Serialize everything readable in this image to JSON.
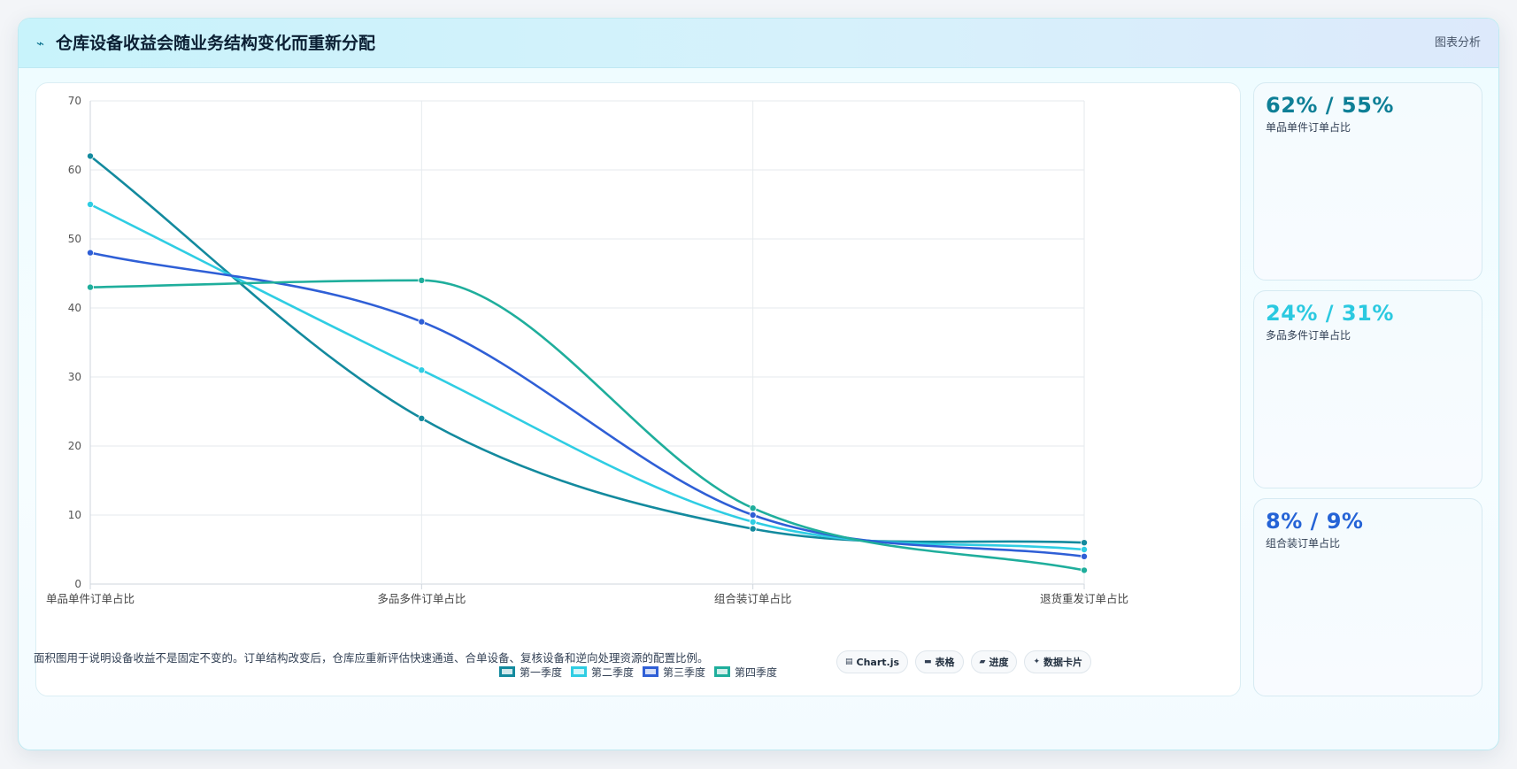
{
  "header": {
    "title": "仓库设备收益会随业务结构变化而重新分配",
    "tag": "图表分析",
    "icon": "bolt-icon"
  },
  "chart_data": {
    "type": "line",
    "categories": [
      "单品单件订单占比",
      "多品多件订单占比",
      "组合装订单占比",
      "退货重发订单占比"
    ],
    "series": [
      {
        "name": "第一季度",
        "values": [
          62,
          24,
          8,
          6
        ],
        "color": "#138a9e"
      },
      {
        "name": "第二季度",
        "values": [
          55,
          31,
          9,
          5
        ],
        "color": "#2fcde3"
      },
      {
        "name": "第三季度",
        "values": [
          48,
          38,
          10,
          4
        ],
        "color": "#2f5fd6"
      },
      {
        "name": "第四季度",
        "values": [
          43,
          44,
          11,
          2
        ],
        "color": "#1fae9c"
      }
    ],
    "ylim": [
      0,
      70
    ],
    "yticks": [
      0,
      10,
      20,
      30,
      40,
      50,
      60,
      70
    ],
    "grid": true,
    "legend": "bottom",
    "curve": "smooth"
  },
  "stats": [
    {
      "value": "62% / 55%",
      "label": "单品单件订单占比",
      "color": "#0e7f96"
    },
    {
      "value": "24% / 31%",
      "label": "多品多件订单占比",
      "color": "#2bc9e0"
    },
    {
      "value": "8% / 9%",
      "label": "组合装订单占比",
      "color": "#2563d6"
    }
  ],
  "footer": {
    "note": "面积图用于说明设备收益不是固定不变的。订单结构改变后，仓库应重新评估快速通道、合单设备、复核设备和逆向处理资源的配置比例。",
    "pills": [
      {
        "icon": "chart-icon",
        "glyph": "▤",
        "label": "Chart.js"
      },
      {
        "icon": "table-icon",
        "glyph": "▬",
        "label": "表格"
      },
      {
        "icon": "progress-icon",
        "glyph": "▰",
        "label": "进度"
      },
      {
        "icon": "card-icon",
        "glyph": "✦",
        "label": "数据卡片"
      }
    ]
  }
}
